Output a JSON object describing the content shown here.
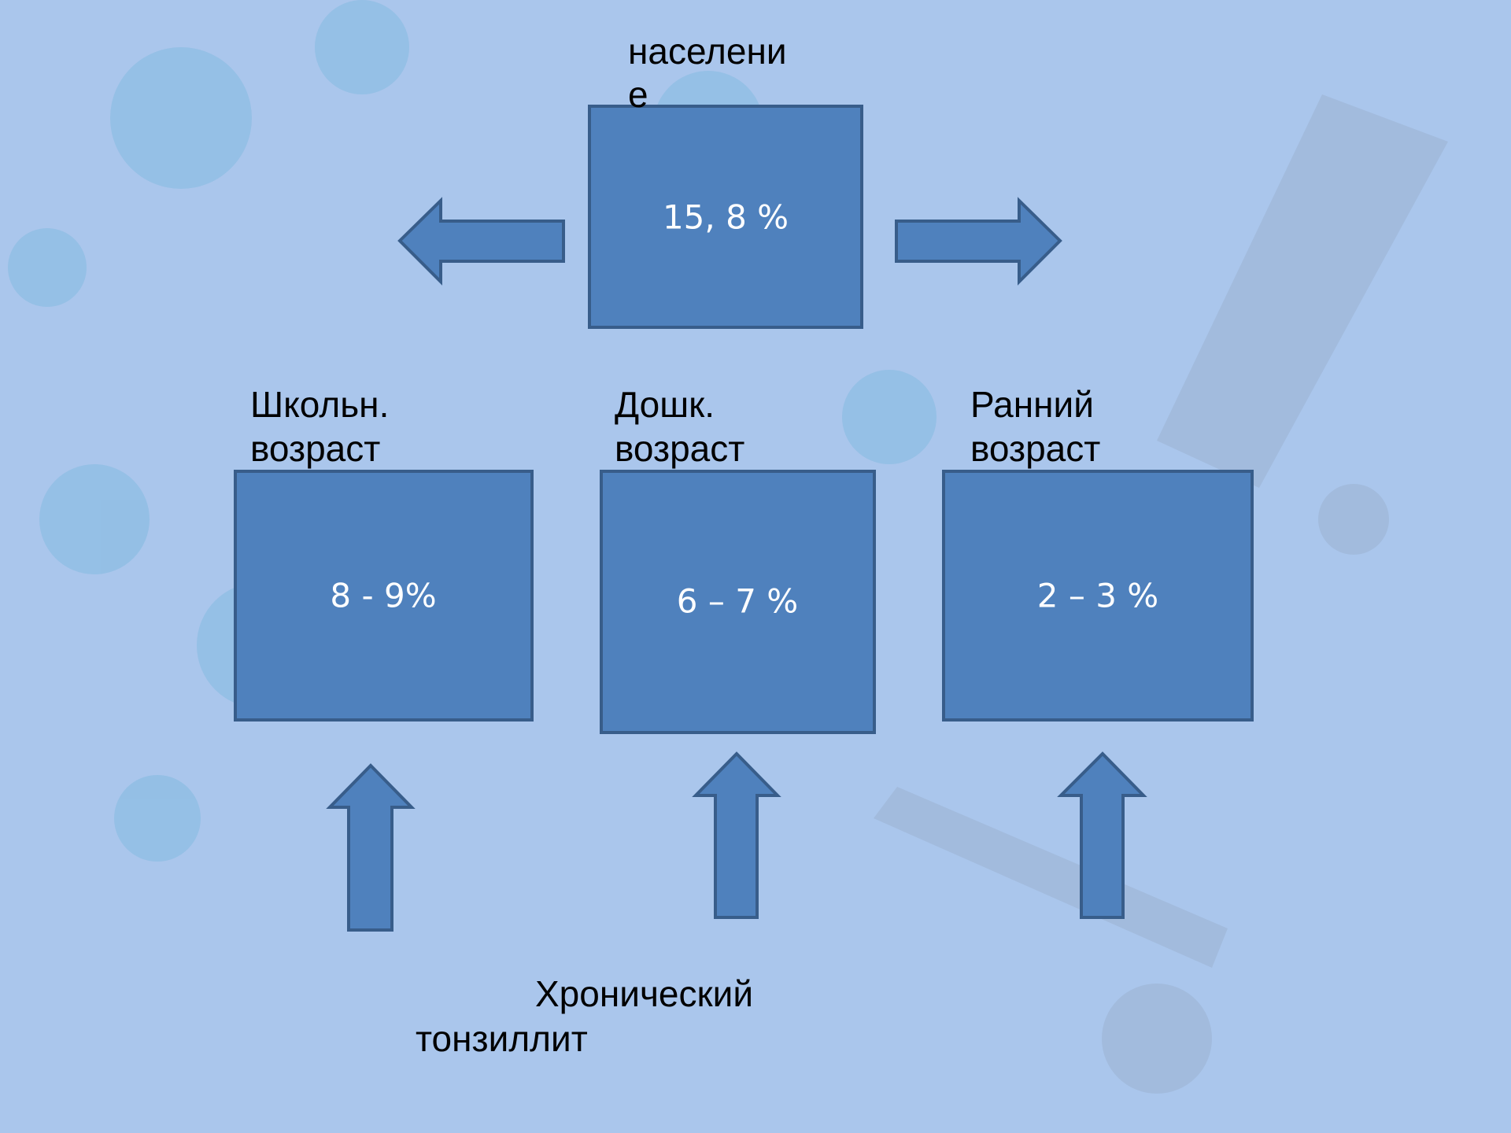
{
  "top": {
    "label_lines": [
      "населени",
      "е"
    ],
    "value": "15, 8 %"
  },
  "groups": [
    {
      "label_lines": [
        "Школьн.",
        "возраст"
      ],
      "value": "8 - 9%"
    },
    {
      "label_lines": [
        "Дошк.",
        "возраст"
      ],
      "value": "6 – 7 %"
    },
    {
      "label_lines": [
        "Ранний",
        "возраст"
      ],
      "value": "2 – 3 %"
    }
  ],
  "footer": {
    "lines": [
      "Хронический",
      "тонзиллит"
    ]
  }
}
